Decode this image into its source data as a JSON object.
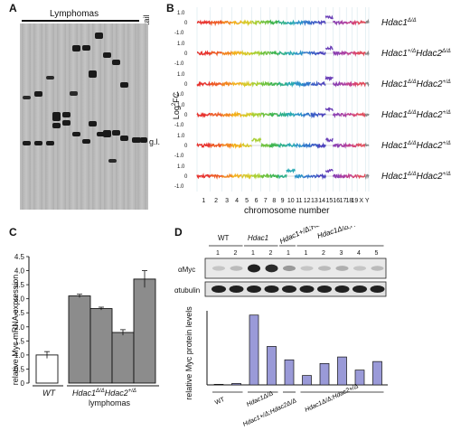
{
  "panels": {
    "A": {
      "label": "A",
      "header": "Lymphomas",
      "tail": "tail",
      "gl_label": "g.l."
    },
    "B": {
      "label": "B",
      "ylabel": "Log2FC",
      "xlabel": "chromosome number",
      "yticks": [
        "1.0",
        "0",
        "-1.0"
      ],
      "chromosomes": [
        "1",
        "2",
        "3",
        "4",
        "5",
        "6",
        "7",
        "8",
        "9",
        "10",
        "11",
        "12",
        "13",
        "14",
        "15",
        "16",
        "17",
        "18",
        "19",
        "X",
        "Y"
      ],
      "genotypes": [
        {
          "label": "Hdac1Δ/Δ",
          "gain": [
            15
          ]
        },
        {
          "label": "Hdac1+/ΔHdac2Δ/Δ",
          "gain": [
            15
          ]
        },
        {
          "label": "Hdac1Δ/ΔHdac2+/Δ",
          "gain": [
            15
          ]
        },
        {
          "label": "Hdac1Δ/ΔHdac2+/Δ",
          "gain": [
            15
          ]
        },
        {
          "label": "Hdac1Δ/ΔHdac2+/Δ",
          "gain": [
            6,
            15
          ]
        },
        {
          "label": "Hdac1Δ/ΔHdac2+/Δ",
          "gain": [
            10,
            15
          ]
        }
      ]
    },
    "C": {
      "label": "C",
      "ylabel": "relative Myc mRNA expression",
      "yticks": [
        "0",
        "0.5",
        "1.0",
        "1.5",
        "2.0",
        "2.5",
        "3.0",
        "3.5",
        "4.0",
        "4.5"
      ],
      "group_wt": "WT",
      "group_ko": "Hdac1Δ/ΔHdac2+/Δ",
      "group_ko_sub": "lymphomas"
    },
    "D": {
      "label": "D",
      "blot_labels": [
        "αMyc",
        "αtubulin"
      ],
      "groups": [
        "WT",
        "Hdac1Δ/Δ",
        "Hdac1+/Δ;Hdac2Δ/Δ",
        "Hdac1Δ/Δ;Hdac2+/Δ"
      ],
      "lane_numbers": [
        "1",
        "2",
        "1",
        "2",
        "1",
        "1",
        "2",
        "3",
        "4",
        "5"
      ],
      "ylabel": "relative Myc protein levels",
      "xgroups": [
        "WT",
        "Hdac1Δ/Δ",
        "Hdac1+/Δ;Hdac2Δ/Δ",
        "Hdac1Δ/Δ;Hdac2+/Δ"
      ]
    }
  },
  "chart_data": [
    {
      "type": "bar",
      "panel": "C",
      "ylabel": "relative Myc mRNA expression",
      "ylim": [
        0,
        4.5
      ],
      "categories": [
        "WT",
        "Hdac1Δ/ΔHdac2+/Δ #1",
        "Hdac1Δ/ΔHdac2+/Δ #2",
        "Hdac1Δ/ΔHdac2+/Δ #3",
        "Hdac1Δ/ΔHdac2+/Δ #4"
      ],
      "values": [
        1.0,
        3.1,
        2.65,
        1.8,
        3.7
      ],
      "errors": [
        0.12,
        0.06,
        0.05,
        0.1,
        0.3
      ],
      "colors": [
        "#ffffff",
        "#8c8c8c",
        "#8c8c8c",
        "#8c8c8c",
        "#8c8c8c"
      ]
    },
    {
      "type": "bar",
      "panel": "D",
      "ylabel": "relative Myc protein levels",
      "ylim": [
        0,
        2.6
      ],
      "categories": [
        "WT 1",
        "WT 2",
        "Hdac1Δ/Δ 1",
        "Hdac1Δ/Δ 2",
        "Hdac1+/Δ;Hdac2Δ/Δ 1",
        "Hdac1Δ/Δ;Hdac2+/Δ 1",
        "Hdac1Δ/Δ;Hdac2+/Δ 2",
        "Hdac1Δ/Δ;Hdac2+/Δ 3",
        "Hdac1Δ/Δ;Hdac2+/Δ 4",
        "Hdac1Δ/Δ;Hdac2+/Δ 5"
      ],
      "values": [
        0.02,
        0.05,
        2.45,
        1.35,
        0.88,
        0.33,
        0.75,
        0.98,
        0.52,
        0.82
      ],
      "color": "#9a9ad8"
    }
  ]
}
